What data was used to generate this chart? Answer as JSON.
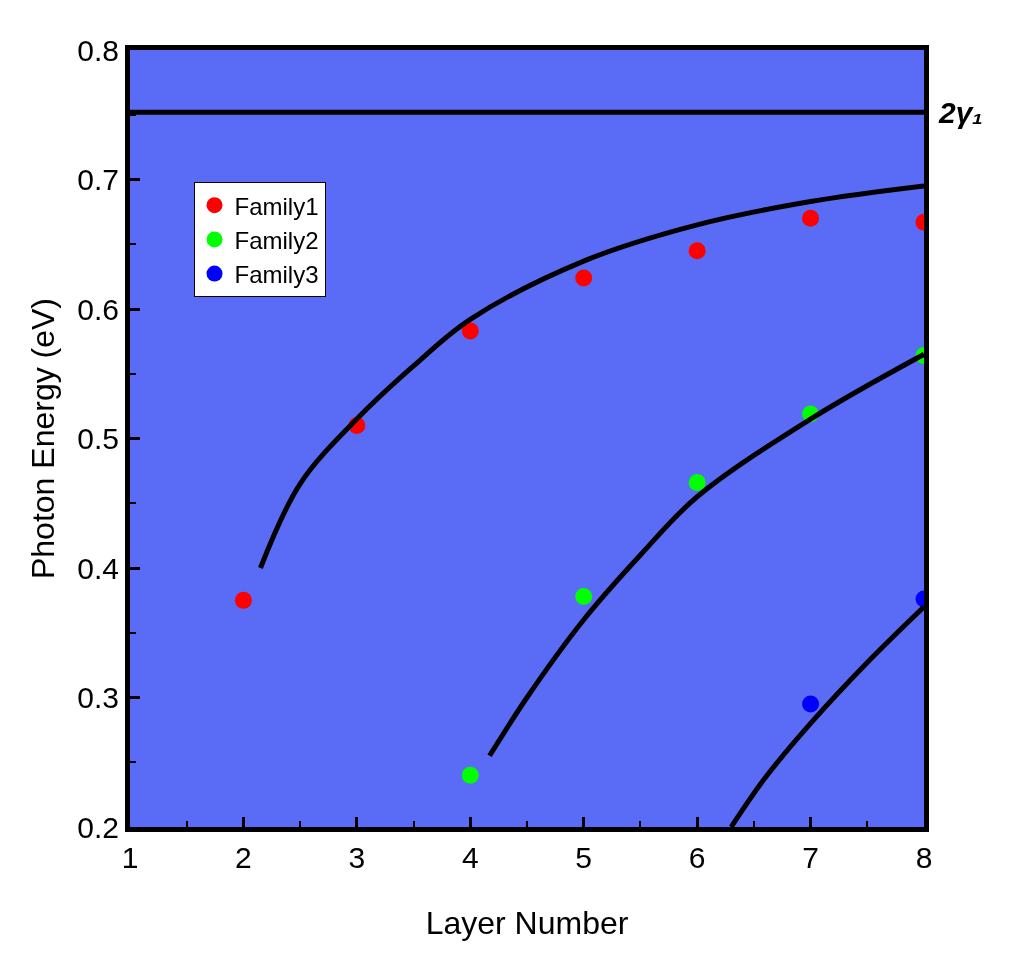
{
  "chart_data": {
    "type": "scatter",
    "xlabel": "Layer Number",
    "ylabel": "Photon Energy (eV)",
    "xlim": [
      1,
      8
    ],
    "xticks": [
      1,
      2,
      3,
      4,
      5,
      6,
      7,
      8
    ],
    "ylim": [
      0.2,
      0.8
    ],
    "yticks": [
      0.2,
      0.3,
      0.4,
      0.5,
      0.6,
      0.7,
      0.8
    ],
    "grid": false,
    "legend": "top left",
    "marker": "circle",
    "series": [
      {
        "name": "Family1",
        "color": "#ff0000",
        "x": [
          2,
          3,
          4,
          5,
          6,
          7,
          8
        ],
        "values": [
          0.375,
          0.51,
          0.583,
          0.624,
          0.645,
          0.67,
          0.667
        ]
      },
      {
        "name": "Family2",
        "color": "#00ff00",
        "x": [
          4,
          5,
          6,
          7,
          8
        ],
        "values": [
          0.24,
          0.378,
          0.466,
          0.519,
          0.564
        ]
      },
      {
        "name": "Family3",
        "color": "#0000ff",
        "x": [
          7,
          8
        ],
        "values": [
          0.295,
          0.376
        ]
      },
      {
        "type": "line",
        "marker": "none",
        "color": "#000000",
        "line_style": "solid",
        "x": [
          2.15,
          2.5,
          3,
          3.5,
          4,
          5,
          6,
          7,
          8
        ],
        "values": [
          0.4,
          0.465,
          0.515,
          0.556,
          0.592,
          0.637,
          0.665,
          0.683,
          0.695
        ]
      },
      {
        "type": "line",
        "marker": "none",
        "color": "#000000",
        "line_style": "solid",
        "x": [
          4.17,
          4.5,
          5,
          5.5,
          6,
          7,
          8
        ],
        "values": [
          0.255,
          0.3,
          0.36,
          0.41,
          0.455,
          0.515,
          0.565
        ]
      },
      {
        "type": "line",
        "marker": "none",
        "color": "#000000",
        "line_style": "solid",
        "x": [
          6.3,
          6.6,
          7,
          7.5,
          8
        ],
        "values": [
          0.2,
          0.238,
          0.28,
          0.327,
          0.37
        ]
      }
    ],
    "ref_lines": [
      {
        "axis": "y",
        "value": 0.752,
        "label": "2γ₁",
        "color": "#000000"
      }
    ]
  }
}
